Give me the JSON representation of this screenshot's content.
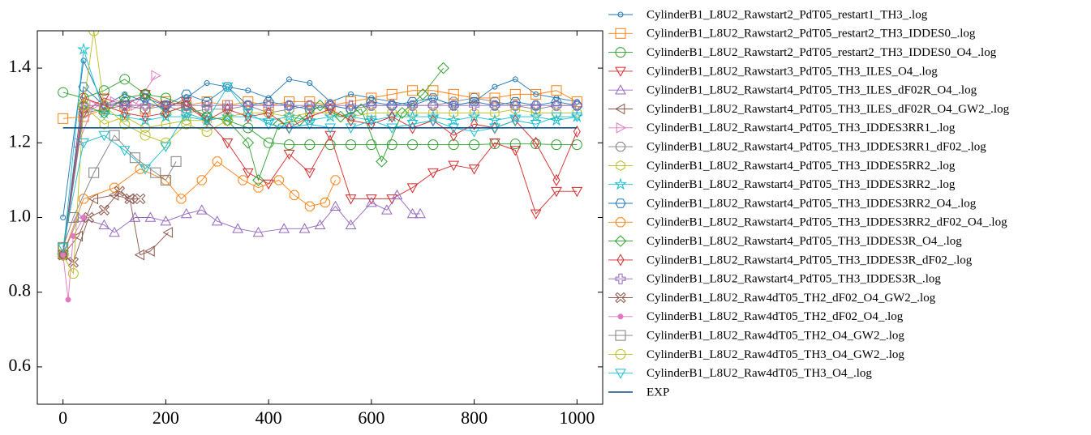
{
  "chart_data": {
    "type": "line",
    "xlim": [
      -50,
      1050
    ],
    "ylim": [
      0.5,
      1.5
    ],
    "xticks": [
      0,
      200,
      400,
      600,
      800,
      1000
    ],
    "yticks": [
      0.6,
      0.8,
      {
        "value": 1.0,
        "label": "1.0"
      },
      1.2,
      1.4
    ],
    "legend": "outside right",
    "series": [
      {
        "name": "CylinderB1_L8U2_Rawstart2_PdT05_restart1_TH3_.log",
        "color": "#1f77b4",
        "marker": "o",
        "markersize": 3,
        "x": [
          0,
          40,
          80,
          120,
          160,
          200,
          240,
          280,
          320,
          360,
          400,
          440,
          480,
          520,
          560,
          600,
          640,
          680,
          720,
          760,
          800,
          840,
          880,
          920,
          960,
          1000
        ],
        "values": [
          1.0,
          1.42,
          1.3,
          1.33,
          1.31,
          1.29,
          1.32,
          1.36,
          1.35,
          1.34,
          1.32,
          1.37,
          1.36,
          1.31,
          1.33,
          1.32,
          1.31,
          1.3,
          1.32,
          1.3,
          1.31,
          1.35,
          1.37,
          1.33,
          1.32,
          1.31
        ]
      },
      {
        "name": "CylinderB1_L8U2_Rawstart2_PdT05_restart2_TH3_IDDES0_.log",
        "color": "#ff7f0e",
        "marker": "s",
        "markersize": 6,
        "x": [
          0,
          40,
          80,
          120,
          160,
          200,
          240,
          280,
          320,
          360,
          400,
          440,
          480,
          520,
          560,
          600,
          640,
          680,
          720,
          760,
          800,
          840,
          880,
          920,
          960,
          1000
        ],
        "values": [
          1.265,
          1.27,
          1.29,
          1.3,
          1.29,
          1.31,
          1.3,
          1.31,
          1.3,
          1.31,
          1.3,
          1.31,
          1.31,
          1.3,
          1.31,
          1.32,
          1.33,
          1.34,
          1.34,
          1.33,
          1.32,
          1.32,
          1.33,
          1.33,
          1.34,
          1.31
        ]
      },
      {
        "name": "CylinderB1_L8U2_Rawstart2_PdT05_restart2_TH3_IDDES0_O4_.log",
        "color": "#2ca02c",
        "marker": "o",
        "markersize": 6,
        "x": [
          0,
          40,
          80,
          120,
          160,
          200,
          240,
          280,
          320,
          360,
          400,
          440,
          480,
          520,
          560,
          600,
          640,
          680,
          720,
          760,
          800,
          840,
          880,
          920,
          960,
          1000
        ],
        "values": [
          1.335,
          1.32,
          1.34,
          1.37,
          1.33,
          1.32,
          1.3,
          1.27,
          1.26,
          1.24,
          1.2,
          1.195,
          1.195,
          1.195,
          1.195,
          1.195,
          1.195,
          1.195,
          1.195,
          1.195,
          1.195,
          1.197,
          1.197,
          1.197,
          1.195,
          1.195
        ]
      },
      {
        "name": "CylinderB1_L8U2_Rawstart3_PdT05_TH3_ILES_O4_.log",
        "color": "#d62728",
        "marker": "v",
        "markersize": 6,
        "x": [
          0,
          40,
          80,
          120,
          160,
          200,
          240,
          280,
          320,
          360,
          400,
          440,
          480,
          520,
          560,
          600,
          640,
          680,
          720,
          760,
          800,
          840,
          880,
          920,
          960,
          1000
        ],
        "values": [
          0.9,
          1.28,
          1.32,
          1.3,
          1.33,
          1.3,
          1.31,
          1.26,
          1.2,
          1.12,
          1.09,
          1.17,
          1.12,
          1.22,
          1.05,
          1.05,
          1.05,
          1.08,
          1.12,
          1.14,
          1.13,
          1.2,
          1.18,
          1.01,
          1.07,
          1.07
        ]
      },
      {
        "name": "CylinderB1_L8U2_Rawstart4_PdT05_TH3_ILES_dF02R_O4_.log",
        "color": "#9467bd",
        "marker": "^",
        "markersize": 6,
        "x": [
          0,
          30,
          80,
          100,
          140,
          170,
          200,
          240,
          270,
          300,
          340,
          380,
          430,
          470,
          500,
          530,
          560,
          600,
          630,
          650,
          680,
          695
        ],
        "values": [
          0.9,
          1.0,
          0.98,
          0.96,
          1.0,
          1.0,
          0.99,
          1.01,
          1.02,
          0.99,
          0.97,
          0.96,
          0.97,
          0.97,
          0.98,
          1.03,
          0.98,
          1.04,
          1.02,
          1.06,
          1.01,
          1.01
        ]
      },
      {
        "name": "CylinderB1_L8U2_Rawstart4_PdT05_TH3_ILES_dF02R_O4_GW2_.log",
        "color": "#8c564b",
        "marker": "<",
        "markersize": 6,
        "x": [
          0,
          30,
          60,
          100,
          130,
          150,
          170,
          205
        ],
        "values": [
          0.9,
          0.95,
          1.05,
          1.06,
          1.05,
          0.9,
          0.91,
          0.96
        ]
      },
      {
        "name": "CylinderB1_L8U2_Rawstart4_PdT05_TH3_IDDES3RR1_.log",
        "color": "#e377c2",
        "marker": ">",
        "markersize": 6,
        "x": [
          0,
          30,
          60,
          100,
          140,
          180
        ],
        "values": [
          0.9,
          1.2,
          1.3,
          1.31,
          1.3,
          1.38
        ]
      },
      {
        "name": "CylinderB1_L8U2_Rawstart4_PdT05_TH3_IDDES3RR1_dF02_.log",
        "color": "#7f7f7f",
        "marker": "8",
        "markersize": 6,
        "x": [
          0,
          40,
          80,
          120,
          160,
          200,
          240,
          280,
          320,
          360,
          400,
          440,
          480,
          520,
          560,
          600,
          640,
          680,
          720,
          760,
          800,
          840,
          880,
          920,
          960,
          1000
        ],
        "values": [
          0.9,
          1.28,
          1.29,
          1.3,
          1.29,
          1.3,
          1.28,
          1.29,
          1.29,
          1.3,
          1.28,
          1.29,
          1.3,
          1.3,
          1.29,
          1.3,
          1.3,
          1.3,
          1.3,
          1.31,
          1.32,
          1.31,
          1.3,
          1.29,
          1.3,
          1.3
        ]
      },
      {
        "name": "CylinderB1_L8U2_Rawstart4_PdT05_TH3_IDDES5RR2_.log",
        "color": "#bcbd22",
        "marker": "h",
        "markersize": 6,
        "x": [
          0,
          40,
          80,
          120,
          160,
          200,
          240,
          280,
          320,
          360,
          400,
          440,
          480,
          520,
          560,
          600,
          640,
          680,
          720,
          760,
          800,
          840,
          880,
          920,
          960,
          1000
        ],
        "values": [
          0.92,
          1.3,
          1.25,
          1.27,
          1.24,
          1.25,
          1.26,
          1.26,
          1.27,
          1.28,
          1.28,
          1.27,
          1.28,
          1.28,
          1.27,
          1.28,
          1.28,
          1.28,
          1.28,
          1.28,
          1.28,
          1.28,
          1.29,
          1.28,
          1.28,
          1.28
        ]
      },
      {
        "name": "CylinderB1_L8U2_Rawstart4_PdT05_TH3_IDDES3RR2_.log",
        "color": "#17becf",
        "marker": "*",
        "markersize": 6,
        "x": [
          0,
          40,
          80,
          120,
          160,
          200,
          240,
          280,
          320,
          360,
          400,
          440,
          480,
          520,
          560,
          600,
          640,
          680,
          720,
          760,
          800,
          840,
          880,
          920,
          960,
          1000
        ],
        "values": [
          0.9,
          1.45,
          1.28,
          1.27,
          1.26,
          1.27,
          1.27,
          1.26,
          1.27,
          1.27,
          1.26,
          1.27,
          1.26,
          1.27,
          1.27,
          1.26,
          1.27,
          1.27,
          1.27,
          1.26,
          1.27,
          1.26,
          1.27,
          1.27,
          1.26,
          1.27
        ]
      },
      {
        "name": "CylinderB1_L8U2_Rawstart4_PdT05_TH3_IDDES3RR2_O4_.log",
        "color": "#1f77b4",
        "marker": "H",
        "markersize": 6,
        "x": [
          0,
          40,
          80,
          120,
          160,
          200,
          240,
          280,
          320,
          360,
          400,
          440,
          480,
          520,
          560,
          600,
          640,
          680,
          720,
          760,
          800,
          840,
          880,
          920,
          960,
          1000
        ],
        "values": [
          0.9,
          1.35,
          1.3,
          1.31,
          1.32,
          1.3,
          1.33,
          1.31,
          1.35,
          1.3,
          1.31,
          1.3,
          1.29,
          1.3,
          1.29,
          1.31,
          1.3,
          1.31,
          1.32,
          1.3,
          1.31,
          1.3,
          1.31,
          1.3,
          1.31,
          1.3
        ]
      },
      {
        "name": "CylinderB1_L8U2_Rawstart4_PdT05_TH3_IDDES3RR2_dF02_O4_.log",
        "color": "#ff7f0e",
        "marker": "8",
        "markersize": 6,
        "x": [
          0,
          40,
          100,
          150,
          200,
          230,
          270,
          300,
          350,
          380,
          420,
          450,
          480,
          510,
          530
        ],
        "values": [
          0.9,
          1.05,
          1.08,
          1.13,
          1.1,
          1.05,
          1.1,
          1.15,
          1.1,
          1.08,
          1.1,
          1.06,
          1.03,
          1.04,
          1.1
        ]
      },
      {
        "name": "CylinderB1_L8U2_Rawstart4_PdT05_TH3_IDDES3R_O4_.log",
        "color": "#2ca02c",
        "marker": "D",
        "markersize": 6,
        "x": [
          0,
          40,
          80,
          120,
          160,
          200,
          240,
          280,
          320,
          360,
          380,
          420,
          460,
          500,
          540,
          580,
          620,
          660,
          700,
          740
        ],
        "values": [
          0.9,
          1.3,
          1.28,
          1.32,
          1.33,
          1.28,
          1.3,
          1.27,
          1.26,
          1.2,
          1.1,
          1.25,
          1.26,
          1.3,
          1.27,
          1.29,
          1.15,
          1.28,
          1.33,
          1.4
        ]
      },
      {
        "name": "CylinderB1_L8U2_Rawstart4_PdT05_TH3_IDDES3R_dF02_.log",
        "color": "#d62728",
        "marker": "d",
        "markersize": 6,
        "x": [
          0,
          40,
          80,
          120,
          160,
          200,
          240,
          280,
          320,
          360,
          400,
          440,
          480,
          520,
          560,
          600,
          640,
          680,
          720,
          760,
          800,
          840,
          880,
          920,
          960,
          1000
        ],
        "values": [
          0.9,
          1.32,
          1.3,
          1.28,
          1.27,
          1.28,
          1.3,
          1.26,
          1.29,
          1.27,
          1.28,
          1.24,
          1.27,
          1.29,
          1.26,
          1.25,
          1.27,
          1.24,
          1.26,
          1.22,
          1.25,
          1.24,
          1.26,
          1.2,
          1.1,
          1.23
        ]
      },
      {
        "name": "CylinderB1_L8U2_Rawstart4_PdT05_TH3_IDDES3R_.log",
        "color": "#9467bd",
        "marker": "P",
        "markersize": 6,
        "x": [
          0,
          40,
          80,
          120,
          160,
          200,
          240,
          280,
          320,
          360,
          400,
          440,
          480,
          520,
          560,
          600,
          640,
          680,
          720,
          760,
          800,
          840,
          880,
          920,
          960,
          1000
        ],
        "values": [
          0.9,
          1.3,
          1.3,
          1.3,
          1.3,
          1.3,
          1.3,
          1.3,
          1.3,
          1.3,
          1.3,
          1.3,
          1.3,
          1.3,
          1.3,
          1.3,
          1.3,
          1.3,
          1.3,
          1.3,
          1.3,
          1.3,
          1.3,
          1.3,
          1.3,
          1.3
        ]
      },
      {
        "name": "CylinderB1_L8U2_Raw4dT05_TH2_dF02_O4_GW2_.log",
        "color": "#8c564b",
        "marker": "X",
        "markersize": 6,
        "x": [
          0,
          20,
          50,
          80,
          110,
          130,
          150
        ],
        "values": [
          0.9,
          0.88,
          1.0,
          1.02,
          1.07,
          1.05,
          1.05
        ]
      },
      {
        "name": "CylinderB1_L8U2_Raw4dT05_TH2_dF02_O4_.log",
        "color": "#e377c2",
        "marker": ".",
        "markersize": 3,
        "x": [
          0,
          10,
          20,
          40
        ],
        "values": [
          0.9,
          0.78,
          0.95,
          1.0
        ]
      },
      {
        "name": "CylinderB1_L8U2_Raw4dT05_TH2_O4_GW2_.log",
        "color": "#7f7f7f",
        "marker": "s",
        "markersize": 6,
        "x": [
          0,
          20,
          60,
          100,
          140,
          180,
          200,
          220
        ],
        "values": [
          0.92,
          1.0,
          1.12,
          1.22,
          1.16,
          1.12,
          1.1,
          1.15
        ]
      },
      {
        "name": "CylinderB1_L8U2_Raw4dT05_TH3_O4_GW2_.log",
        "color": "#bcbd22",
        "marker": "o",
        "markersize": 6,
        "x": [
          0,
          20,
          40,
          60,
          80,
          120,
          160,
          200,
          240,
          280,
          320
        ],
        "values": [
          0.9,
          0.85,
          1.3,
          1.5,
          1.3,
          1.25,
          1.22,
          1.2,
          1.25,
          1.23,
          1.26
        ]
      },
      {
        "name": "CylinderB1_L8U2_Raw4dT05_TH3_O4_.log",
        "color": "#17becf",
        "marker": "v",
        "markersize": 6,
        "x": [
          0,
          40,
          80,
          120,
          160,
          200,
          240,
          280,
          320,
          360,
          400,
          440,
          480,
          520,
          560,
          600,
          640,
          680,
          720,
          760,
          800,
          840,
          880,
          920,
          960,
          1000
        ],
        "values": [
          0.92,
          1.2,
          1.22,
          1.18,
          1.13,
          1.19,
          1.28,
          1.26,
          1.35,
          1.28,
          1.25,
          1.24,
          1.25,
          1.24,
          1.24,
          1.26,
          1.24,
          1.25,
          1.26,
          1.24,
          1.23,
          1.24,
          1.26,
          1.25,
          1.27,
          1.27
        ]
      },
      {
        "name": "EXP",
        "color": "#0c4f8a",
        "x": [
          0,
          1000
        ],
        "values": [
          1.24,
          1.24
        ]
      }
    ]
  }
}
